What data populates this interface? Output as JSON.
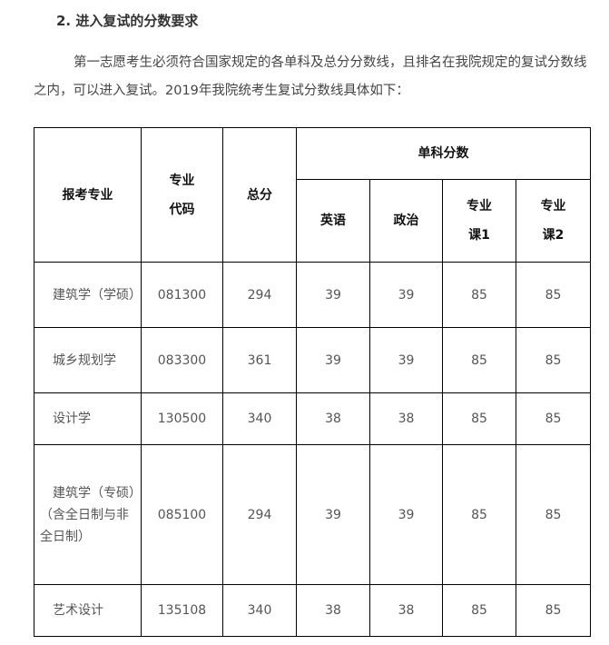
{
  "heading": "2. 进入复试的分数要求",
  "paragraph": "第一志愿考生必须符合国家规定的各单科及总分分数线，且排名在我院规定的复试分数线之内，可以进入复试。2019年我院统考生复试分数线具体如下：",
  "table": {
    "headers": {
      "major": "报考专业",
      "code": "专业代码",
      "total": "总分",
      "single": "单科分数",
      "english": "英语",
      "politics": "政治",
      "course1": "专业课1",
      "course2": "专业课2"
    },
    "rows": [
      {
        "major": "　建筑学（学硕）",
        "code": "081300",
        "total": "294",
        "english": "39",
        "politics": "39",
        "course1": "85",
        "course2": "85"
      },
      {
        "major": "　城乡规划学",
        "code": "083300",
        "total": "361",
        "english": "39",
        "politics": "39",
        "course1": "85",
        "course2": "85"
      },
      {
        "major": "　设计学",
        "code": "130500",
        "total": "340",
        "english": "38",
        "politics": "38",
        "course1": "85",
        "course2": "85"
      },
      {
        "major": "　建筑学（专硕）　（含全日制与非全日制）",
        "code": "085100",
        "total": "294",
        "english": "39",
        "politics": "39",
        "course1": "85",
        "course2": "85"
      },
      {
        "major": "　艺术设计",
        "code": "135108",
        "total": "340",
        "english": "38",
        "politics": "38",
        "course1": "85",
        "course2": "85"
      }
    ]
  }
}
